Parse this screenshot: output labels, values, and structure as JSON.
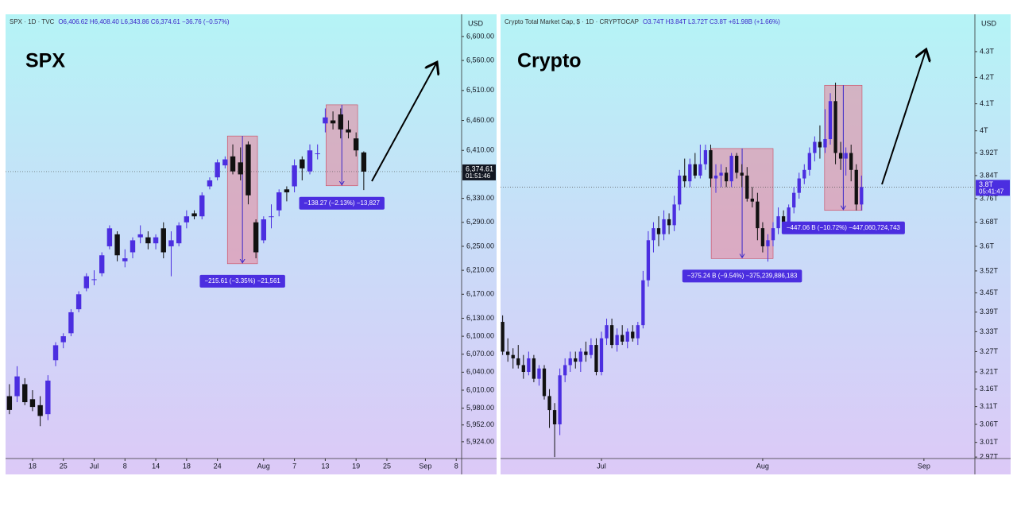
{
  "chart_data": [
    {
      "type": "candlestick",
      "symbol_line": "SPX · 1D · TVC",
      "ohlc_label": "O6,406.62 H6,408.40 L6,343.86 C6,374.61 −36.76 (−0.57%)",
      "title": "SPX",
      "currency": "USD",
      "price_label": "6,374.61",
      "countdown": "01:51:46",
      "price_tag_color": "#131722",
      "up_color": "#4b2ee0",
      "down_color": "#111111",
      "open": [
        6000,
        6000,
        6020,
        5995,
        5985,
        5970,
        6060,
        6090,
        6105,
        6145,
        6180,
        6195,
        6205,
        6250,
        6270,
        6225,
        6240,
        6265,
        6265,
        6255,
        6280,
        6250,
        6255,
        6290,
        6305,
        6300,
        6350,
        6365,
        6385,
        6400,
        6390,
        6420,
        6290,
        6260,
        6300,
        6310,
        6345,
        6350,
        6395,
        6375,
        6405,
        6455,
        6460,
        6470,
        6445,
        6430,
        6406.62
      ],
      "high": [
        6020,
        6050,
        6030,
        6010,
        6000,
        6035,
        6090,
        6105,
        6145,
        6175,
        6205,
        6210,
        6240,
        6285,
        6275,
        6245,
        6265,
        6285,
        6275,
        6270,
        6290,
        6275,
        6290,
        6310,
        6310,
        6340,
        6365,
        6395,
        6400,
        6420,
        6415,
        6425,
        6295,
        6300,
        6320,
        6345,
        6350,
        6395,
        6400,
        6420,
        6420,
        6480,
        6475,
        6480,
        6460,
        6440,
        6408.4
      ],
      "low": [
        5970,
        5990,
        5985,
        5975,
        5950,
        5960,
        6050,
        6080,
        6100,
        6140,
        6175,
        6185,
        6200,
        6245,
        6225,
        6215,
        6230,
        6255,
        6245,
        6245,
        6230,
        6200,
        6250,
        6280,
        6295,
        6295,
        6345,
        6360,
        6380,
        6370,
        6360,
        6320,
        6230,
        6255,
        6280,
        6300,
        6325,
        6340,
        6360,
        6370,
        6395,
        6440,
        6445,
        6430,
        6430,
        6400,
        6343.86
      ],
      "close": [
        5977,
        6033,
        5990,
        5982,
        5967,
        6026,
        6085,
        6100,
        6140,
        6170,
        6200,
        6195,
        6235,
        6280,
        6235,
        6230,
        6260,
        6270,
        6255,
        6265,
        6240,
        6260,
        6285,
        6300,
        6300,
        6335,
        6360,
        6390,
        6395,
        6375,
        6370,
        6335,
        6240,
        6295,
        6300,
        6340,
        6340,
        6385,
        6380,
        6410,
        6405,
        6465,
        6455,
        6445,
        6440,
        6410,
        6374.61
      ],
      "xlim": [
        -0.5,
        58.7
      ],
      "xticks": [
        {
          "value": 3,
          "label": "18"
        },
        {
          "value": 7,
          "label": "25"
        },
        {
          "value": 11,
          "label": "Jul"
        },
        {
          "value": 15,
          "label": "8"
        },
        {
          "value": 19,
          "label": "14"
        },
        {
          "value": 23,
          "label": "18"
        },
        {
          "value": 27,
          "label": "24"
        },
        {
          "value": 33,
          "label": "Aug"
        },
        {
          "value": 37,
          "label": "7"
        },
        {
          "value": 41,
          "label": "13"
        },
        {
          "value": 45,
          "label": "19"
        },
        {
          "value": 49,
          "label": "25"
        },
        {
          "value": 54,
          "label": "Sep"
        },
        {
          "value": 58,
          "label": "8"
        }
      ],
      "ylim": [
        5896,
        6637
      ],
      "log_scale": false,
      "yticks": [
        {
          "value": 6600,
          "label": "6,600.00"
        },
        {
          "value": 6560,
          "label": "6,560.00"
        },
        {
          "value": 6510,
          "label": "6,510.00"
        },
        {
          "value": 6460,
          "label": "6,460.00"
        },
        {
          "value": 6410,
          "label": "6,410.00"
        },
        {
          "value": 6330,
          "label": "6,330.00"
        },
        {
          "value": 6290,
          "label": "6,290.00"
        },
        {
          "value": 6250,
          "label": "6,250.00"
        },
        {
          "value": 6210,
          "label": "6,210.00"
        },
        {
          "value": 6170,
          "label": "6,170.00"
        },
        {
          "value": 6130,
          "label": "6,130.00"
        },
        {
          "value": 6100,
          "label": "6,100.00"
        },
        {
          "value": 6070,
          "label": "6,070.00"
        },
        {
          "value": 6040,
          "label": "6,040.00"
        },
        {
          "value": 6010,
          "label": "6,010.00"
        },
        {
          "value": 5980,
          "label": "5,980.00"
        },
        {
          "value": 5952,
          "label": "5,952.00"
        },
        {
          "value": 5924,
          "label": "5,924.00"
        }
      ],
      "measures": [
        {
          "start": 28.3,
          "end": 32.2,
          "top": 6434,
          "bottom": 6221,
          "label": "−215.61 (−3.35%) −21,561"
        },
        {
          "start": 41.1,
          "end": 45.2,
          "top": 6486,
          "bottom": 6351,
          "label": "−138.27 (−2.13%) −13,827"
        }
      ]
    },
    {
      "type": "candlestick",
      "symbol_line": "Crypto Total Market Cap, $ · 1D · CRYPTOCAP",
      "ohlc_label": "O3.74T H3.84T L3.72T C3.8T +61.98B (+1.66%)",
      "title": "Crypto",
      "currency": "USD",
      "price_label": "3.8T",
      "countdown": "05:41:47",
      "price_tag_color": "#4b2ee0",
      "up_color": "#4b2ee0",
      "down_color": "#111111",
      "open": [
        3.36,
        3.27,
        3.26,
        3.25,
        3.23,
        3.21,
        3.25,
        3.19,
        3.22,
        3.14,
        3.1,
        3.06,
        3.2,
        3.23,
        3.25,
        3.24,
        3.27,
        3.26,
        3.29,
        3.21,
        3.31,
        3.35,
        3.29,
        3.32,
        3.3,
        3.33,
        3.31,
        3.35,
        3.49,
        3.62,
        3.66,
        3.64,
        3.69,
        3.67,
        3.74,
        3.84,
        3.82,
        3.88,
        3.84,
        3.88,
        3.93,
        3.83,
        3.84,
        3.85,
        3.82,
        3.91,
        3.85,
        3.84,
        3.76,
        3.75,
        3.66,
        3.6,
        3.62,
        3.66,
        3.7,
        3.68,
        3.73,
        3.78,
        3.83,
        3.86,
        3.92,
        3.96,
        3.94,
        3.97,
        4.11,
        3.92,
        3.9,
        3.92,
        3.86,
        3.74
      ],
      "high": [
        3.38,
        3.31,
        3.28,
        3.29,
        3.26,
        3.27,
        3.26,
        3.23,
        3.23,
        3.16,
        3.12,
        3.22,
        3.25,
        3.27,
        3.27,
        3.28,
        3.3,
        3.31,
        3.31,
        3.33,
        3.37,
        3.37,
        3.34,
        3.35,
        3.34,
        3.35,
        3.36,
        3.52,
        3.65,
        3.68,
        3.7,
        3.72,
        3.71,
        3.77,
        3.86,
        3.9,
        3.9,
        3.92,
        3.95,
        3.95,
        3.95,
        3.88,
        3.88,
        3.87,
        3.92,
        3.92,
        3.88,
        3.87,
        3.8,
        3.78,
        3.68,
        3.64,
        3.68,
        3.73,
        3.72,
        3.74,
        3.8,
        3.85,
        3.88,
        3.94,
        3.98,
        4.02,
        4.08,
        4.14,
        4.18,
        3.96,
        3.94,
        3.95,
        3.88,
        3.84
      ],
      "low": [
        3.26,
        3.24,
        3.22,
        3.22,
        3.19,
        3.2,
        3.18,
        3.17,
        3.13,
        3.05,
        2.97,
        3.03,
        3.18,
        3.21,
        3.22,
        3.21,
        3.24,
        3.25,
        3.2,
        3.2,
        3.29,
        3.28,
        3.27,
        3.29,
        3.28,
        3.3,
        3.29,
        3.34,
        3.47,
        3.58,
        3.6,
        3.62,
        3.64,
        3.65,
        3.72,
        3.8,
        3.8,
        3.83,
        3.83,
        3.86,
        3.8,
        3.78,
        3.8,
        3.8,
        3.8,
        3.83,
        3.8,
        3.75,
        3.73,
        3.62,
        3.58,
        3.55,
        3.6,
        3.64,
        3.66,
        3.66,
        3.71,
        3.76,
        3.81,
        3.84,
        3.89,
        3.9,
        3.92,
        3.95,
        3.88,
        3.86,
        3.84,
        3.82,
        3.72,
        3.72
      ],
      "close": [
        3.27,
        3.26,
        3.25,
        3.23,
        3.21,
        3.25,
        3.19,
        3.22,
        3.14,
        3.1,
        3.06,
        3.2,
        3.23,
        3.25,
        3.24,
        3.27,
        3.26,
        3.29,
        3.21,
        3.31,
        3.35,
        3.29,
        3.32,
        3.3,
        3.33,
        3.31,
        3.35,
        3.49,
        3.62,
        3.66,
        3.64,
        3.69,
        3.67,
        3.74,
        3.84,
        3.82,
        3.88,
        3.84,
        3.88,
        3.93,
        3.83,
        3.84,
        3.85,
        3.82,
        3.91,
        3.85,
        3.84,
        3.76,
        3.75,
        3.66,
        3.6,
        3.62,
        3.66,
        3.7,
        3.68,
        3.73,
        3.78,
        3.83,
        3.86,
        3.92,
        3.96,
        3.94,
        3.97,
        4.11,
        3.92,
        3.9,
        3.92,
        3.86,
        3.74,
        3.8
      ],
      "xlim": [
        -0.4,
        90.8
      ],
      "xticks": [
        {
          "value": 19,
          "label": "Jul"
        },
        {
          "value": 50,
          "label": "Aug"
        },
        {
          "value": 81,
          "label": "Sep"
        }
      ],
      "ylim": [
        2.966,
        4.449
      ],
      "log_scale": true,
      "yticks": [
        {
          "value": 4.3,
          "label": "4.3T"
        },
        {
          "value": 4.2,
          "label": "4.2T"
        },
        {
          "value": 4.1,
          "label": "4.1T"
        },
        {
          "value": 4,
          "label": "4T"
        },
        {
          "value": 3.92,
          "label": "3.92T"
        },
        {
          "value": 3.84,
          "label": "3.84T"
        },
        {
          "value": 3.76,
          "label": "3.76T"
        },
        {
          "value": 3.68,
          "label": "3.68T"
        },
        {
          "value": 3.6,
          "label": "3.6T"
        },
        {
          "value": 3.52,
          "label": "3.52T"
        },
        {
          "value": 3.45,
          "label": "3.45T"
        },
        {
          "value": 3.39,
          "label": "3.39T"
        },
        {
          "value": 3.33,
          "label": "3.33T"
        },
        {
          "value": 3.27,
          "label": "3.27T"
        },
        {
          "value": 3.21,
          "label": "3.21T"
        },
        {
          "value": 3.16,
          "label": "3.16T"
        },
        {
          "value": 3.11,
          "label": "3.11T"
        },
        {
          "value": 3.06,
          "label": "3.06T"
        },
        {
          "value": 3.01,
          "label": "3.01T"
        },
        {
          "value": 2.97,
          "label": "2.97T"
        }
      ],
      "measures": [
        {
          "start": 40.1,
          "end": 52,
          "top": 3.936,
          "bottom": 3.56,
          "label": "−375.24 B (−9.54%) −375,239,886,183"
        },
        {
          "start": 61.9,
          "end": 69.1,
          "top": 4.17,
          "bottom": 3.72,
          "label": "−447.06 B (−10.72%) −447,060,724,743"
        }
      ]
    }
  ]
}
